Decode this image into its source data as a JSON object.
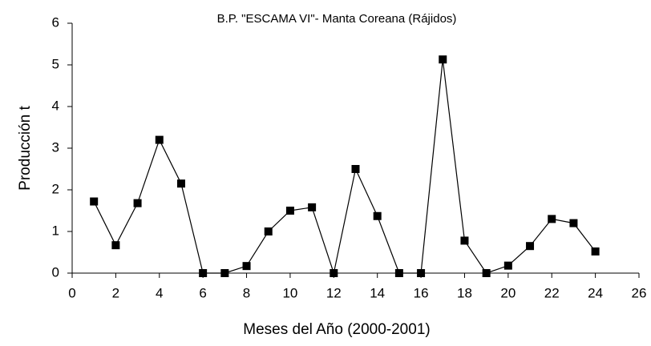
{
  "chart_data": {
    "type": "line",
    "title": "B.P. \"ESCAMA VI\"- Manta Coreana  (Rájidos)",
    "x_label": "Meses del Año (2000-2001)",
    "y_label": "Producción t",
    "x": [
      1,
      2,
      3,
      4,
      5,
      6,
      7,
      8,
      9,
      10,
      11,
      12,
      13,
      14,
      15,
      16,
      17,
      18,
      19,
      20,
      21,
      22,
      23,
      24
    ],
    "values": [
      1.72,
      0.67,
      1.68,
      3.2,
      2.15,
      0,
      0,
      0.17,
      1.0,
      1.5,
      1.58,
      0,
      2.5,
      1.37,
      0,
      0,
      5.13,
      0.78,
      0,
      0.18,
      0.65,
      1.3,
      1.2,
      0.52
    ],
    "color": "#000000",
    "xlim": [
      0,
      26
    ],
    "xticks": [
      0,
      2,
      4,
      6,
      8,
      10,
      12,
      14,
      16,
      18,
      20,
      22,
      24,
      26
    ],
    "ylim": [
      0,
      6
    ],
    "yticks": [
      0,
      1,
      2,
      3,
      4,
      5,
      6
    ],
    "grid": false
  }
}
